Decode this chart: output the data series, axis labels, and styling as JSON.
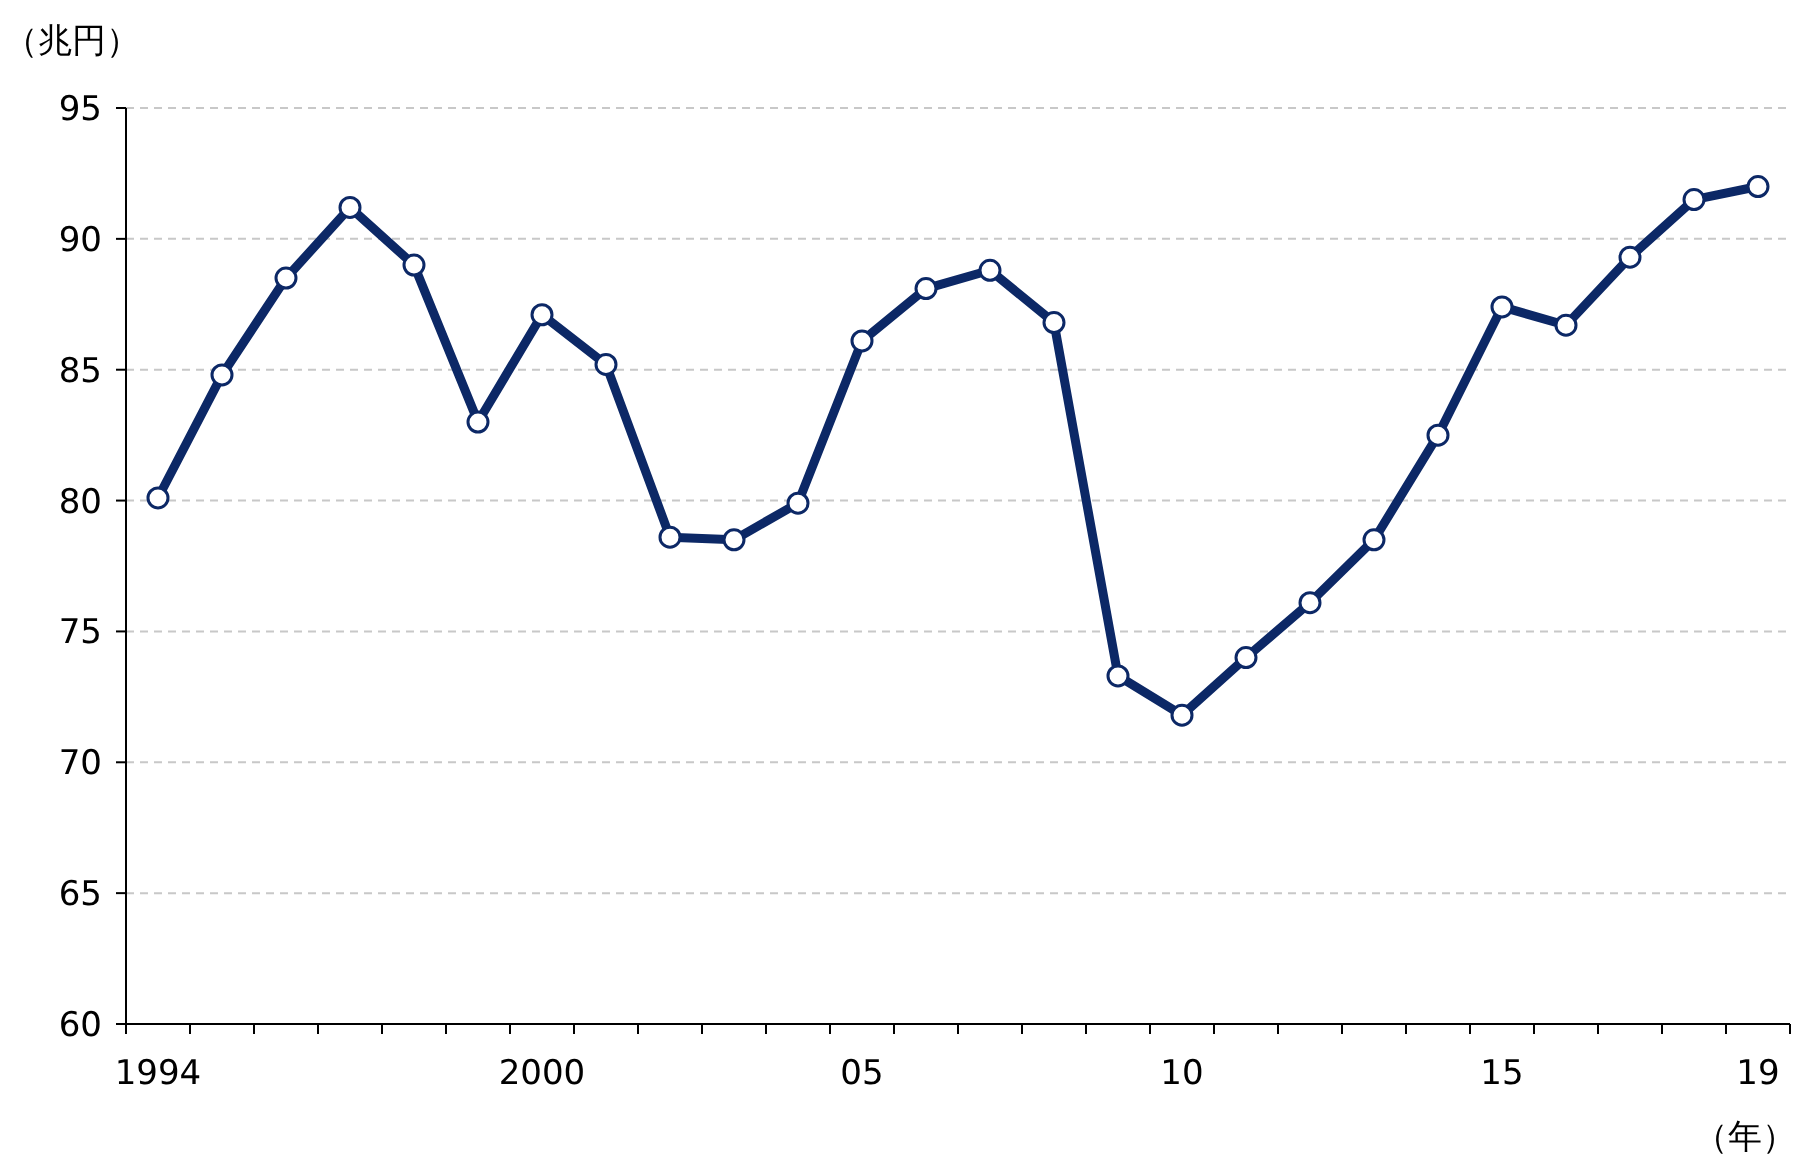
{
  "chart_data": {
    "type": "line",
    "ylabel": "（兆円）",
    "xlabel": "（年）",
    "categories": [
      "1994",
      null,
      null,
      null,
      null,
      null,
      "2000",
      null,
      null,
      null,
      null,
      "05",
      null,
      null,
      null,
      null,
      "10",
      null,
      null,
      null,
      null,
      "15",
      null,
      null,
      null,
      "19"
    ],
    "series": [
      {
        "color": "#0c2866",
        "values": [
          80.1,
          84.8,
          88.5,
          91.2,
          89.0,
          83.0,
          87.1,
          85.2,
          78.6,
          78.5,
          79.9,
          86.1,
          88.1,
          88.8,
          86.8,
          73.3,
          71.8,
          74.0,
          76.1,
          78.5,
          82.5,
          87.4,
          86.7,
          89.3,
          91.5,
          92.0
        ]
      }
    ],
    "ylim": [
      60,
      95
    ],
    "yticks": [
      60,
      65,
      70,
      75,
      80,
      85,
      90,
      95
    ],
    "grid": "y",
    "marker": "circle",
    "line_style": "solid"
  }
}
